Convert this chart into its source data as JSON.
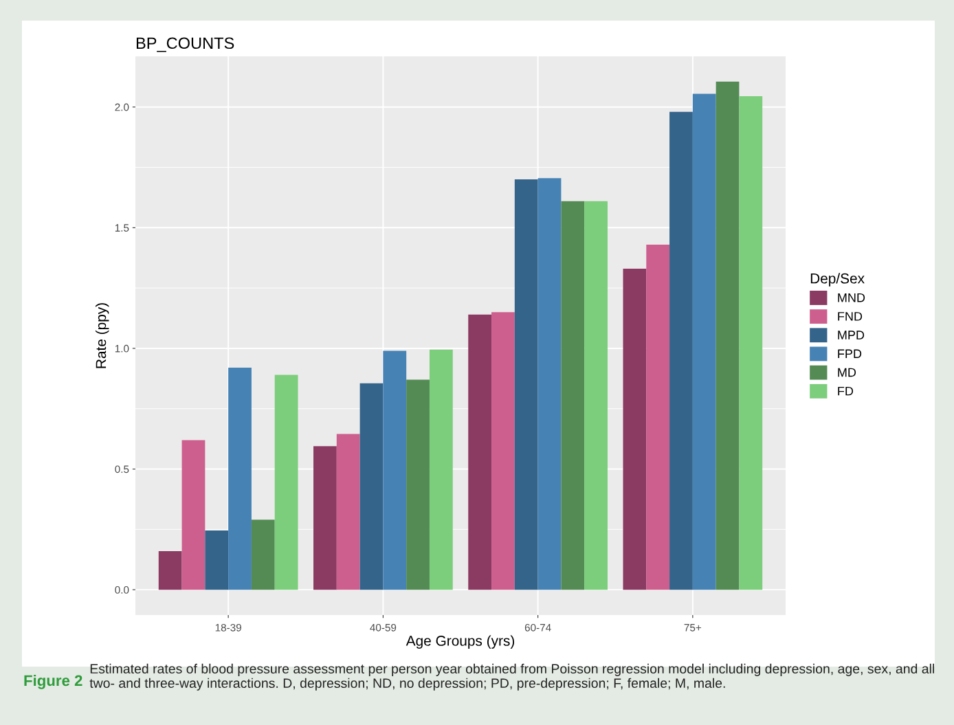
{
  "chart_data": {
    "type": "bar",
    "title": "BP_COUNTS",
    "xlabel": "Age Groups (yrs)",
    "ylabel": "Rate (ppy)",
    "legend_title": "Dep/Sex",
    "categories": [
      "18-39",
      "40-59",
      "60-74",
      "75+"
    ],
    "series": [
      {
        "name": "MND",
        "color": "#8b3a62",
        "values": [
          0.16,
          0.595,
          1.14,
          1.33
        ]
      },
      {
        "name": "FND",
        "color": "#cd5f8e",
        "values": [
          0.62,
          0.645,
          1.15,
          1.43
        ]
      },
      {
        "name": "MPD",
        "color": "#35648b",
        "values": [
          0.245,
          0.855,
          1.7,
          1.98
        ]
      },
      {
        "name": "FPD",
        "color": "#4682b4",
        "values": [
          0.92,
          0.99,
          1.705,
          2.055
        ]
      },
      {
        "name": "MD",
        "color": "#548b54",
        "values": [
          0.29,
          0.87,
          1.61,
          2.105
        ]
      },
      {
        "name": "FD",
        "color": "#7ccd7c",
        "values": [
          0.89,
          0.995,
          1.61,
          2.045
        ]
      }
    ],
    "ylim": [
      -0.105,
      2.21
    ],
    "yticks": [
      {
        "value": 0,
        "label": "0.0"
      },
      0.5,
      {
        "value": 1,
        "label": "1.0"
      },
      1.5,
      {
        "value": 2,
        "label": "2.0"
      }
    ],
    "grid": true,
    "legend": "right",
    "annotations": [
      "Figure 2",
      "Estimated rates of blood pressure assessment per person year obtained from Poisson regression model including depression, age, sex, and all two- and three-way interactions. D, depression; ND, no depression; PD, pre-depression; F, female; M, male."
    ]
  }
}
